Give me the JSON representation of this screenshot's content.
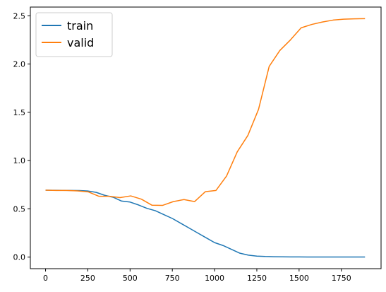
{
  "chart_data": {
    "type": "line",
    "title": "",
    "xlabel": "",
    "ylabel": "",
    "xlim": [
      -90,
      1985
    ],
    "ylim": [
      -0.12,
      2.59
    ],
    "xticks": [
      0,
      250,
      500,
      750,
      1000,
      1250,
      1500,
      1750
    ],
    "xtick_labels": [
      "0",
      "250",
      "500",
      "750",
      "1000",
      "1250",
      "1500",
      "1750"
    ],
    "yticks": [
      0.0,
      0.5,
      1.0,
      1.5,
      2.0,
      2.5
    ],
    "ytick_labels": [
      "0.0",
      "0.5",
      "1.0",
      "1.5",
      "2.0",
      "2.5"
    ],
    "grid": false,
    "legend": "top-left",
    "series": [
      {
        "name": "train",
        "color": "#1f77b4",
        "x": [
          0,
          50,
          100,
          150,
          200,
          250,
          300,
          350,
          400,
          450,
          500,
          550,
          600,
          650,
          700,
          750,
          800,
          850,
          900,
          950,
          1000,
          1050,
          1100,
          1150,
          1200,
          1250,
          1300,
          1350,
          1400,
          1450,
          1500,
          1550,
          1600,
          1650,
          1700,
          1750,
          1800,
          1850,
          1890
        ],
        "y": [
          0.693,
          0.692,
          0.691,
          0.69,
          0.689,
          0.685,
          0.67,
          0.64,
          0.62,
          0.58,
          0.57,
          0.54,
          0.505,
          0.48,
          0.44,
          0.4,
          0.35,
          0.3,
          0.25,
          0.2,
          0.15,
          0.12,
          0.08,
          0.04,
          0.02,
          0.01,
          0.006,
          0.004,
          0.003,
          0.002,
          0.002,
          0.001,
          0.001,
          0.001,
          0.001,
          0.001,
          0.001,
          0.001,
          0.001
        ]
      },
      {
        "name": "valid",
        "color": "#ff7f0e",
        "x": [
          0,
          63,
          126,
          189,
          252,
          315,
          378,
          441,
          504,
          567,
          630,
          693,
          756,
          819,
          882,
          945,
          1008,
          1071,
          1134,
          1197,
          1260,
          1323,
          1386,
          1449,
          1512,
          1575,
          1638,
          1701,
          1764,
          1827,
          1890
        ],
        "y": [
          0.693,
          0.69,
          0.69,
          0.686,
          0.676,
          0.63,
          0.63,
          0.616,
          0.634,
          0.6,
          0.537,
          0.536,
          0.575,
          0.596,
          0.575,
          0.677,
          0.69,
          0.84,
          1.09,
          1.26,
          1.53,
          1.975,
          2.14,
          2.25,
          2.375,
          2.41,
          2.435,
          2.455,
          2.465,
          2.468,
          2.47
        ]
      }
    ]
  }
}
